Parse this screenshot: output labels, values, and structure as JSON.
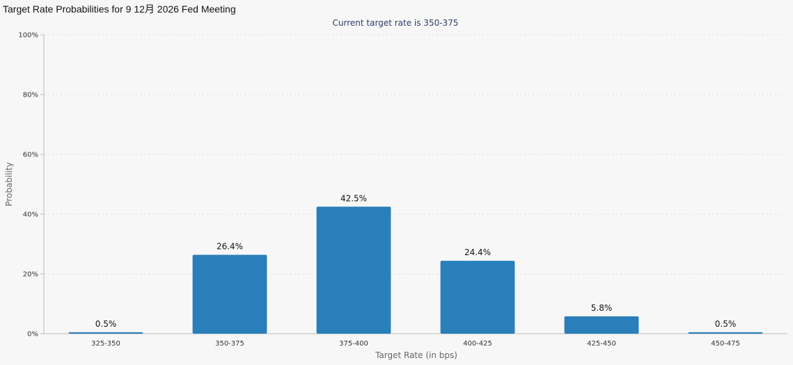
{
  "page": {
    "title": "Target Rate Probabilities for 9 12月 2026 Fed Meeting"
  },
  "colors": {
    "bar": "#2a7fba",
    "background": "#f7f7f7",
    "subtitle": "#2f3d66"
  },
  "chart_data": {
    "type": "bar",
    "title": "Target Rate Probabilities for 9 12月 2026 Fed Meeting",
    "subtitle": "Current target rate is 350-375",
    "xlabel": "Target Rate (in bps)",
    "ylabel": "Probability",
    "categories": [
      "325-350",
      "350-375",
      "375-400",
      "400-425",
      "425-450",
      "450-475"
    ],
    "values": [
      0.5,
      26.4,
      42.5,
      24.4,
      5.8,
      0.5
    ],
    "data_labels": [
      "0.5%",
      "26.4%",
      "42.5%",
      "24.4%",
      "5.8%",
      "0.5%"
    ],
    "ylim": [
      0,
      100
    ],
    "yticks": [
      0,
      20,
      40,
      60,
      80,
      100
    ],
    "ytick_labels": [
      "0%",
      "20%",
      "40%",
      "60%",
      "80%",
      "100%"
    ],
    "grid": true,
    "legend": "none"
  }
}
